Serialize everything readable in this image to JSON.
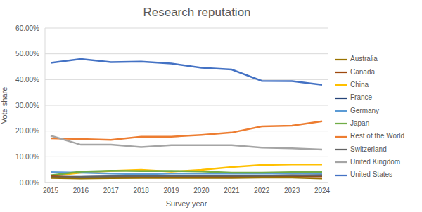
{
  "chart_data": {
    "type": "line",
    "title": "Research reputation",
    "x_label": "Survey year",
    "y_label": "Vote share",
    "categories": [
      "2015",
      "2016",
      "2017",
      "2018",
      "2019",
      "2020",
      "2021",
      "2022",
      "2023",
      "2024"
    ],
    "series": [
      {
        "name": "United States",
        "color": "#4472c4",
        "values": [
          46.5,
          48,
          46.8,
          47,
          46.2,
          44.6,
          43.9,
          39.5,
          39.4,
          38
        ]
      },
      {
        "name": "Rest of the World",
        "color": "#ed7d31",
        "values": [
          17.2,
          16.9,
          16.6,
          17.8,
          17.8,
          18.5,
          19.4,
          21.8,
          22.1,
          23.8
        ]
      },
      {
        "name": "United Kingdom",
        "color": "#a5a5a5",
        "values": [
          18.2,
          14.7,
          14.7,
          13.8,
          14.5,
          14.5,
          14.5,
          13.6,
          13.3,
          12.8
        ]
      },
      {
        "name": "China",
        "color": "#ffc000",
        "values": [
          2.5,
          3.8,
          4.5,
          4.9,
          4.2,
          4.9,
          6.0,
          6.8,
          7.0,
          7.0
        ]
      },
      {
        "name": "Germany",
        "color": "#5b9bd5",
        "values": [
          4.0,
          3.8,
          3.5,
          3.2,
          3.5,
          3.5,
          3.5,
          3.5,
          3.5,
          3.5
        ]
      },
      {
        "name": "Japan",
        "color": "#70ad47",
        "values": [
          2.8,
          4.2,
          4.6,
          4.4,
          4.5,
          4.3,
          3.8,
          3.8,
          4.0,
          4.0
        ]
      },
      {
        "name": "France",
        "color": "#264478",
        "values": [
          2.2,
          2.2,
          2.3,
          2.3,
          2.5,
          2.5,
          2.5,
          2.6,
          2.6,
          2.8
        ]
      },
      {
        "name": "Canada",
        "color": "#9e480e",
        "values": [
          2.4,
          2.0,
          2.0,
          2.1,
          2.2,
          2.2,
          2.2,
          2.3,
          2.4,
          2.4
        ]
      },
      {
        "name": "Switzerland",
        "color": "#636363",
        "values": [
          2.0,
          2.1,
          2.3,
          2.5,
          2.5,
          2.6,
          2.6,
          2.6,
          2.8,
          2.7
        ]
      },
      {
        "name": "Australia",
        "color": "#997300",
        "values": [
          1.8,
          1.6,
          1.7,
          1.8,
          1.8,
          1.8,
          1.8,
          1.9,
          1.9,
          1.6
        ]
      }
    ],
    "ylim": [
      0,
      60
    ],
    "yticks": [
      {
        "value": 0,
        "label": "0.00%"
      },
      {
        "value": 10,
        "label": "10.00%"
      },
      {
        "value": 20,
        "label": "20.00%"
      },
      {
        "value": 30,
        "label": "30.00%"
      },
      {
        "value": 40,
        "label": "40.00%"
      },
      {
        "value": 50,
        "label": "50.00%"
      },
      {
        "value": 60,
        "label": "60.00%"
      }
    ],
    "grid": true,
    "legend": "right"
  }
}
